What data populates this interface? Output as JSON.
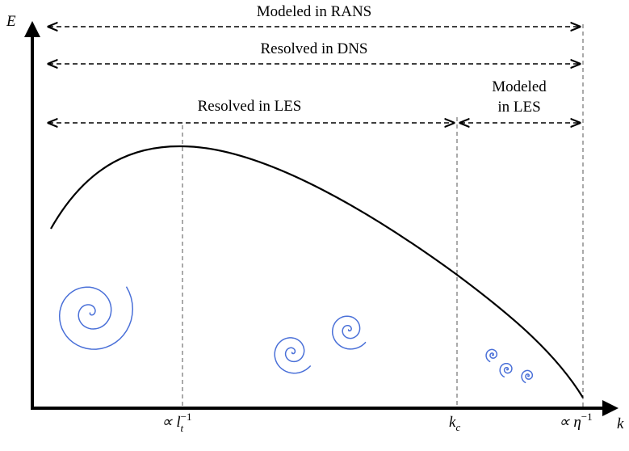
{
  "axes": {
    "y_label": "E",
    "x_label": "k"
  },
  "ranges": {
    "rans": "Modeled in RANS",
    "dns": "Resolved in DNS",
    "les_resolved": "Resolved in LES",
    "les_modeled": {
      "line1": "Modeled",
      "line2": "in LES"
    }
  },
  "ticks": {
    "integral": {
      "base": "∝ l",
      "sub": "t",
      "sup": "−1"
    },
    "cutoff": {
      "base": "k",
      "sub": "c"
    },
    "kolmogorov": {
      "base": "∝ η",
      "sup": "−1"
    }
  }
}
